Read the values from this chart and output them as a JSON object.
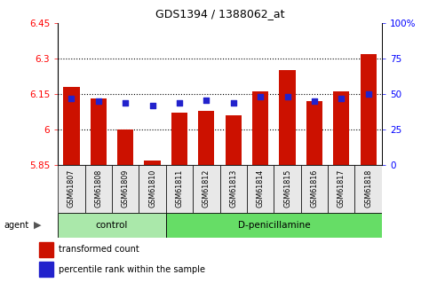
{
  "title": "GDS1394 / 1388062_at",
  "samples": [
    "GSM61807",
    "GSM61808",
    "GSM61809",
    "GSM61810",
    "GSM61811",
    "GSM61812",
    "GSM61813",
    "GSM61814",
    "GSM61815",
    "GSM61816",
    "GSM61817",
    "GSM61818"
  ],
  "transformed_counts": [
    6.18,
    6.13,
    6.0,
    5.87,
    6.07,
    6.08,
    6.06,
    6.16,
    6.25,
    6.12,
    6.16,
    6.32
  ],
  "percentile_ranks": [
    47,
    45,
    44,
    42,
    44,
    46,
    44,
    48,
    48,
    45,
    47,
    50
  ],
  "ymin": 5.85,
  "ymax": 6.45,
  "yticks": [
    5.85,
    6.0,
    6.15,
    6.3,
    6.45
  ],
  "ytick_labels": [
    "5.85",
    "6",
    "6.15",
    "6.3",
    "6.45"
  ],
  "y2ticks": [
    0,
    25,
    50,
    75,
    100
  ],
  "y2tick_labels": [
    "0",
    "25",
    "50",
    "75",
    "100%"
  ],
  "grid_lines": [
    6.0,
    6.15,
    6.3
  ],
  "bar_color": "#cc1100",
  "dot_color": "#2222cc",
  "control_samples": 4,
  "control_label": "control",
  "treatment_label": "D-penicillamine",
  "agent_label": "agent",
  "legend_bar_label": "transformed count",
  "legend_dot_label": "percentile rank within the sample",
  "sample_bg": "#e8e8e8",
  "control_bg": "#aae8aa",
  "treatment_bg": "#66dd66",
  "fig_width": 4.83,
  "fig_height": 3.45
}
